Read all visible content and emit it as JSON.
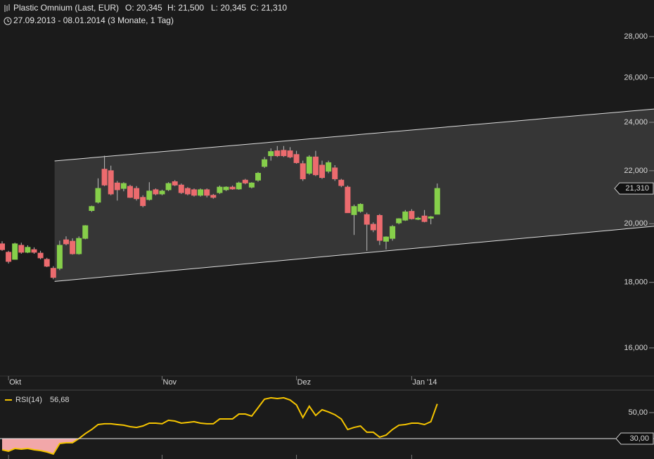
{
  "header": {
    "title": "Plastic Omnium (Last, EUR)",
    "quote": [
      "O: 20,345",
      "H: 21,500",
      "L: 20,345",
      "C: 21,310"
    ],
    "range": "27.09.2013 - 08.01.2014 (3 Monate, 1 Tag)"
  },
  "chart_data": [
    {
      "type": "candlestick",
      "categories": [
        null,
        "Okt",
        null,
        null,
        null,
        null,
        null,
        null,
        null,
        null,
        null,
        null,
        null,
        null,
        null,
        null,
        null,
        null,
        null,
        null,
        null,
        null,
        null,
        null,
        null,
        "Nov",
        null,
        null,
        null,
        null,
        null,
        null,
        null,
        null,
        null,
        null,
        null,
        null,
        null,
        null,
        null,
        null,
        null,
        null,
        null,
        null,
        "Dez",
        null,
        null,
        null,
        null,
        null,
        null,
        null,
        null,
        null,
        null,
        null,
        null,
        null,
        null,
        null,
        null,
        null,
        "Jan '14",
        null,
        null,
        null,
        null
      ],
      "open": [
        19.29,
        19.0,
        18.76,
        19.24,
        19.0,
        19.09,
        18.97,
        18.76,
        18.46,
        18.46,
        19.43,
        19.38,
        18.95,
        19.48,
        20.48,
        20.79,
        22.06,
        22.0,
        21.52,
        21.31,
        21.39,
        21.31,
        20.97,
        20.89,
        21.26,
        21.1,
        21.26,
        21.57,
        21.44,
        21.31,
        21.26,
        21.05,
        21.26,
        21.05,
        21.15,
        21.26,
        21.36,
        21.29,
        21.63,
        21.36,
        21.63,
        22.17,
        22.6,
        22.8,
        22.82,
        22.8,
        22.65,
        22.28,
        21.9,
        22.55,
        22.22,
        21.98,
        22.11,
        21.63,
        21.36,
        20.33,
        20.45,
        20.33,
        19.98,
        20.3,
        19.38,
        19.48,
        20.03,
        20.13,
        20.45,
        20.16,
        20.28,
        20.2,
        20.345
      ],
      "high": [
        19.38,
        19.05,
        19.33,
        19.33,
        19.24,
        19.17,
        19.05,
        18.81,
        18.53,
        19.4,
        19.55,
        19.48,
        19.55,
        19.95,
        20.66,
        21.7,
        22.6,
        22.2,
        21.6,
        21.55,
        21.45,
        21.4,
        21.05,
        21.55,
        21.31,
        21.26,
        21.55,
        21.63,
        21.5,
        21.36,
        21.31,
        21.31,
        21.31,
        21.1,
        21.42,
        21.39,
        21.42,
        21.57,
        21.68,
        21.55,
        21.95,
        22.55,
        22.9,
        23.0,
        23.0,
        22.95,
        22.8,
        22.4,
        22.62,
        22.8,
        22.4,
        22.4,
        22.22,
        21.68,
        21.42,
        20.7,
        20.75,
        20.4,
        20.05,
        20.35,
        19.55,
        19.95,
        20.2,
        20.5,
        20.53,
        20.25,
        20.5,
        20.28,
        21.5
      ],
      "low": [
        19.05,
        18.62,
        18.76,
        18.95,
        18.97,
        18.95,
        18.76,
        18.5,
        18.1,
        18.4,
        19.24,
        18.92,
        18.92,
        19.45,
        20.43,
        20.74,
        21.4,
        21.05,
        20.85,
        21.2,
        20.95,
        20.85,
        20.6,
        20.85,
        21.05,
        21.05,
        21.21,
        21.4,
        21.1,
        21.05,
        21.0,
        21.0,
        20.97,
        20.92,
        21.1,
        21.21,
        21.26,
        21.26,
        21.47,
        21.31,
        21.57,
        22.11,
        22.4,
        22.55,
        22.55,
        22.5,
        22.28,
        21.6,
        21.84,
        21.79,
        21.68,
        21.9,
        21.6,
        21.36,
        20.4,
        19.6,
        20.4,
        19.05,
        19.7,
        19.25,
        19.1,
        19.4,
        19.98,
        20.1,
        20.15,
        20.13,
        20.05,
        19.98,
        20.345
      ],
      "close": [
        19.09,
        18.69,
        19.29,
        19.0,
        19.17,
        19.0,
        18.81,
        18.53,
        18.16,
        19.24,
        19.29,
        18.95,
        19.48,
        19.93,
        20.63,
        21.31,
        21.44,
        21.1,
        21.26,
        21.5,
        20.97,
        20.92,
        20.66,
        21.21,
        21.1,
        21.21,
        21.5,
        21.44,
        21.15,
        21.1,
        21.05,
        21.26,
        21.05,
        20.97,
        21.36,
        21.36,
        21.29,
        21.52,
        21.52,
        21.52,
        21.9,
        22.44,
        22.77,
        22.6,
        22.6,
        22.55,
        22.32,
        21.68,
        22.55,
        21.84,
        21.73,
        22.32,
        21.68,
        21.42,
        20.4,
        20.63,
        20.71,
        19.98,
        19.78,
        19.41,
        19.53,
        19.9,
        20.18,
        20.43,
        20.18,
        20.2,
        20.08,
        20.25,
        21.31
      ],
      "last_label": "21,310",
      "up_color": "#86cf4a",
      "down_color": "#ec6b6e",
      "log_scale": true,
      "ylim": [
        15.21,
        29.9
      ],
      "yticks": [
        {
          "value": 16,
          "label": "16,000"
        },
        {
          "value": 18,
          "label": "18,000"
        },
        {
          "value": 20,
          "label": "20,000"
        },
        {
          "value": 22,
          "label": "22,000"
        },
        {
          "value": 24,
          "label": "24,000"
        },
        {
          "value": 26,
          "label": "26,000"
        },
        {
          "value": 28,
          "label": "28,000"
        }
      ],
      "channel": {
        "x": [
          8.2,
          101.9
        ],
        "upper": [
          22.39,
          24.58
        ],
        "lower": [
          18.03,
          19.91
        ],
        "color": "#ffffff"
      }
    },
    {
      "type": "line",
      "series": [
        {
          "name": "RSI(14)",
          "color": "#f5c400",
          "last_label": "56,68",
          "values": [
            21.4,
            20.3,
            22.4,
            21.9,
            22.4,
            21.4,
            20.8,
            19.7,
            18.1,
            26.2,
            26.8,
            26.8,
            30,
            33.8,
            37,
            40.8,
            41.4,
            41.4,
            40.8,
            40.3,
            39.2,
            38.6,
            39.7,
            41.9,
            41.9,
            41.4,
            44.1,
            43.5,
            41.9,
            42.4,
            43,
            41.9,
            41.4,
            41.4,
            45.1,
            45.1,
            45.1,
            48.9,
            48.9,
            47.3,
            53.8,
            60.3,
            61.4,
            60.8,
            61.4,
            59.7,
            55.9,
            46.2,
            54.9,
            47.8,
            52.2,
            50.5,
            48.4,
            45.1,
            37,
            38.6,
            39.7,
            34.9,
            34.9,
            31.1,
            32.7,
            37,
            40.3,
            40.8,
            41.9,
            41.9,
            40.8,
            43,
            56.68
          ]
        }
      ],
      "ylim": [
        14.3,
        67.3
      ],
      "yticks": [
        {
          "value": 50,
          "label": "50,00"
        }
      ],
      "level": {
        "value": 30,
        "label": "30,00",
        "fill": "#f2a7a9"
      }
    }
  ]
}
